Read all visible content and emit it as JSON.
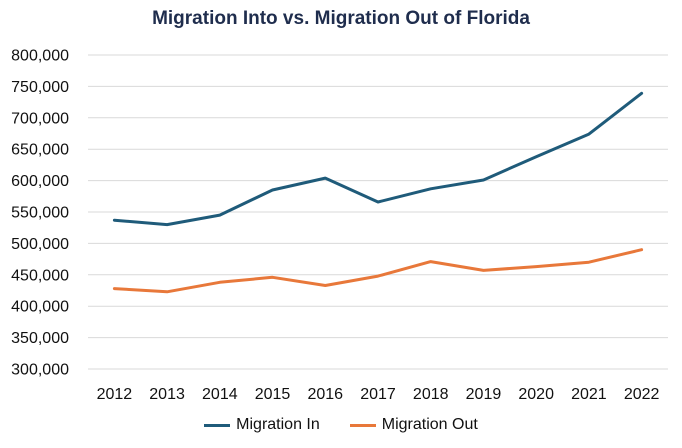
{
  "colors": {
    "migration_in": "#1f5b7a",
    "migration_out": "#e8783a",
    "gridline": "#d9d9d9"
  },
  "chart_data": {
    "type": "line",
    "title": "Migration Into vs. Migration Out of Florida",
    "xlabel": "",
    "ylabel": "",
    "categories": [
      "2012",
      "2013",
      "2014",
      "2015",
      "2016",
      "2017",
      "2018",
      "2019",
      "2020",
      "2021",
      "2022"
    ],
    "series": [
      {
        "name": "Migration In",
        "values": [
          537000,
          530000,
          545000,
          585000,
          604000,
          566000,
          587000,
          601000,
          638000,
          674000,
          739000
        ]
      },
      {
        "name": "Migration Out",
        "values": [
          428000,
          423000,
          438000,
          446000,
          433000,
          448000,
          471000,
          457000,
          463000,
          470000,
          490000
        ]
      }
    ],
    "ylim": [
      300000,
      800000
    ],
    "yticks": [
      "300,000",
      "350,000",
      "400,000",
      "450,000",
      "500,000",
      "550,000",
      "600,000",
      "650,000",
      "700,000",
      "750,000",
      "800,000"
    ],
    "grid": true,
    "legend_position": "bottom"
  }
}
